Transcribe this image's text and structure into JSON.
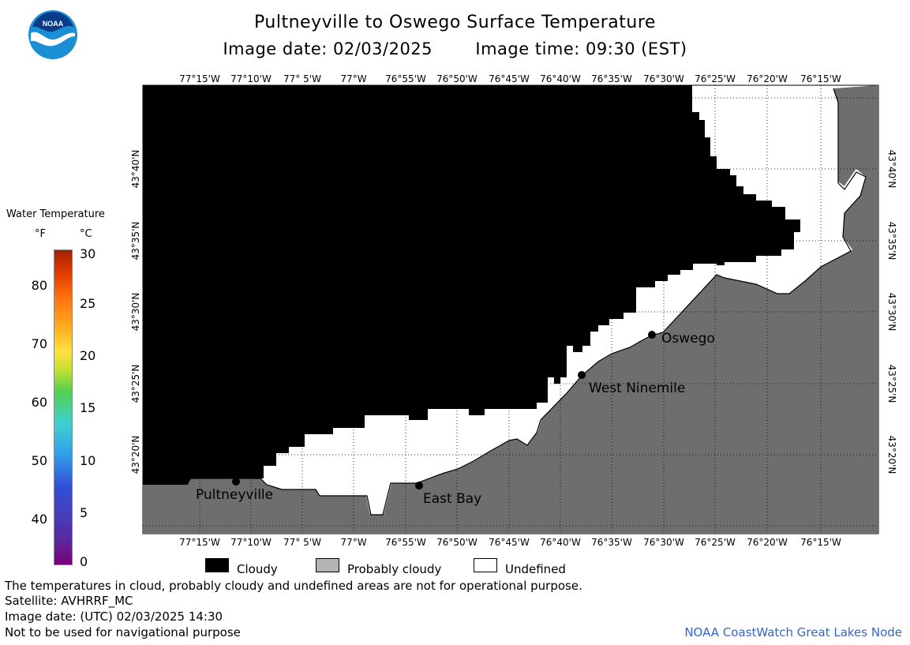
{
  "title": "Pultneyville to Oswego Surface Temperature",
  "subtitle_date": "Image date: 02/03/2025",
  "subtitle_time": "Image time: 09:30 (EST)",
  "logo_text": "NOAA",
  "lon_labels": [
    "77°15'W",
    "77°10'W",
    "77° 5'W",
    "77°W",
    "76°55'W",
    "76°50'W",
    "76°45'W",
    "76°40'W",
    "76°35'W",
    "76°30'W",
    "76°25'W",
    "76°20'W",
    "76°15'W"
  ],
  "lat_labels": [
    "43°40'N",
    "43°35'N",
    "43°30'N",
    "43°25'N",
    "43°20'N"
  ],
  "places": [
    {
      "name": "Oswego"
    },
    {
      "name": "West Ninemile"
    },
    {
      "name": "Pultneyville"
    },
    {
      "name": "East Bay"
    }
  ],
  "legend": {
    "title": "Water Temperature",
    "unit_f": "°F",
    "unit_c": "°C",
    "f_ticks": [
      "80",
      "70",
      "60",
      "50",
      "40"
    ],
    "c_ticks": [
      "30",
      "25",
      "20",
      "15",
      "10",
      "5",
      "0"
    ],
    "items": [
      {
        "label": "Cloudy",
        "color": "#000000"
      },
      {
        "label": "Probably cloudy",
        "color": "#b4b4b4"
      },
      {
        "label": "Undefined",
        "color": "#ffffff"
      }
    ]
  },
  "colors": {
    "land": "#6e6e6e",
    "cloud": "#000000",
    "undefined": "#ffffff",
    "credit": "#3366cc"
  },
  "footer": {
    "line1": "The temperatures in cloud, probably cloudy and undefined areas are not for operational purpose.",
    "line2": "Satellite: AVHRRF_MC",
    "line3": "Image date: (UTC) 02/03/2025  14:30",
    "line4": "Not to be used for navigational purpose",
    "credit": "NOAA CoastWatch Great Lakes Node"
  }
}
